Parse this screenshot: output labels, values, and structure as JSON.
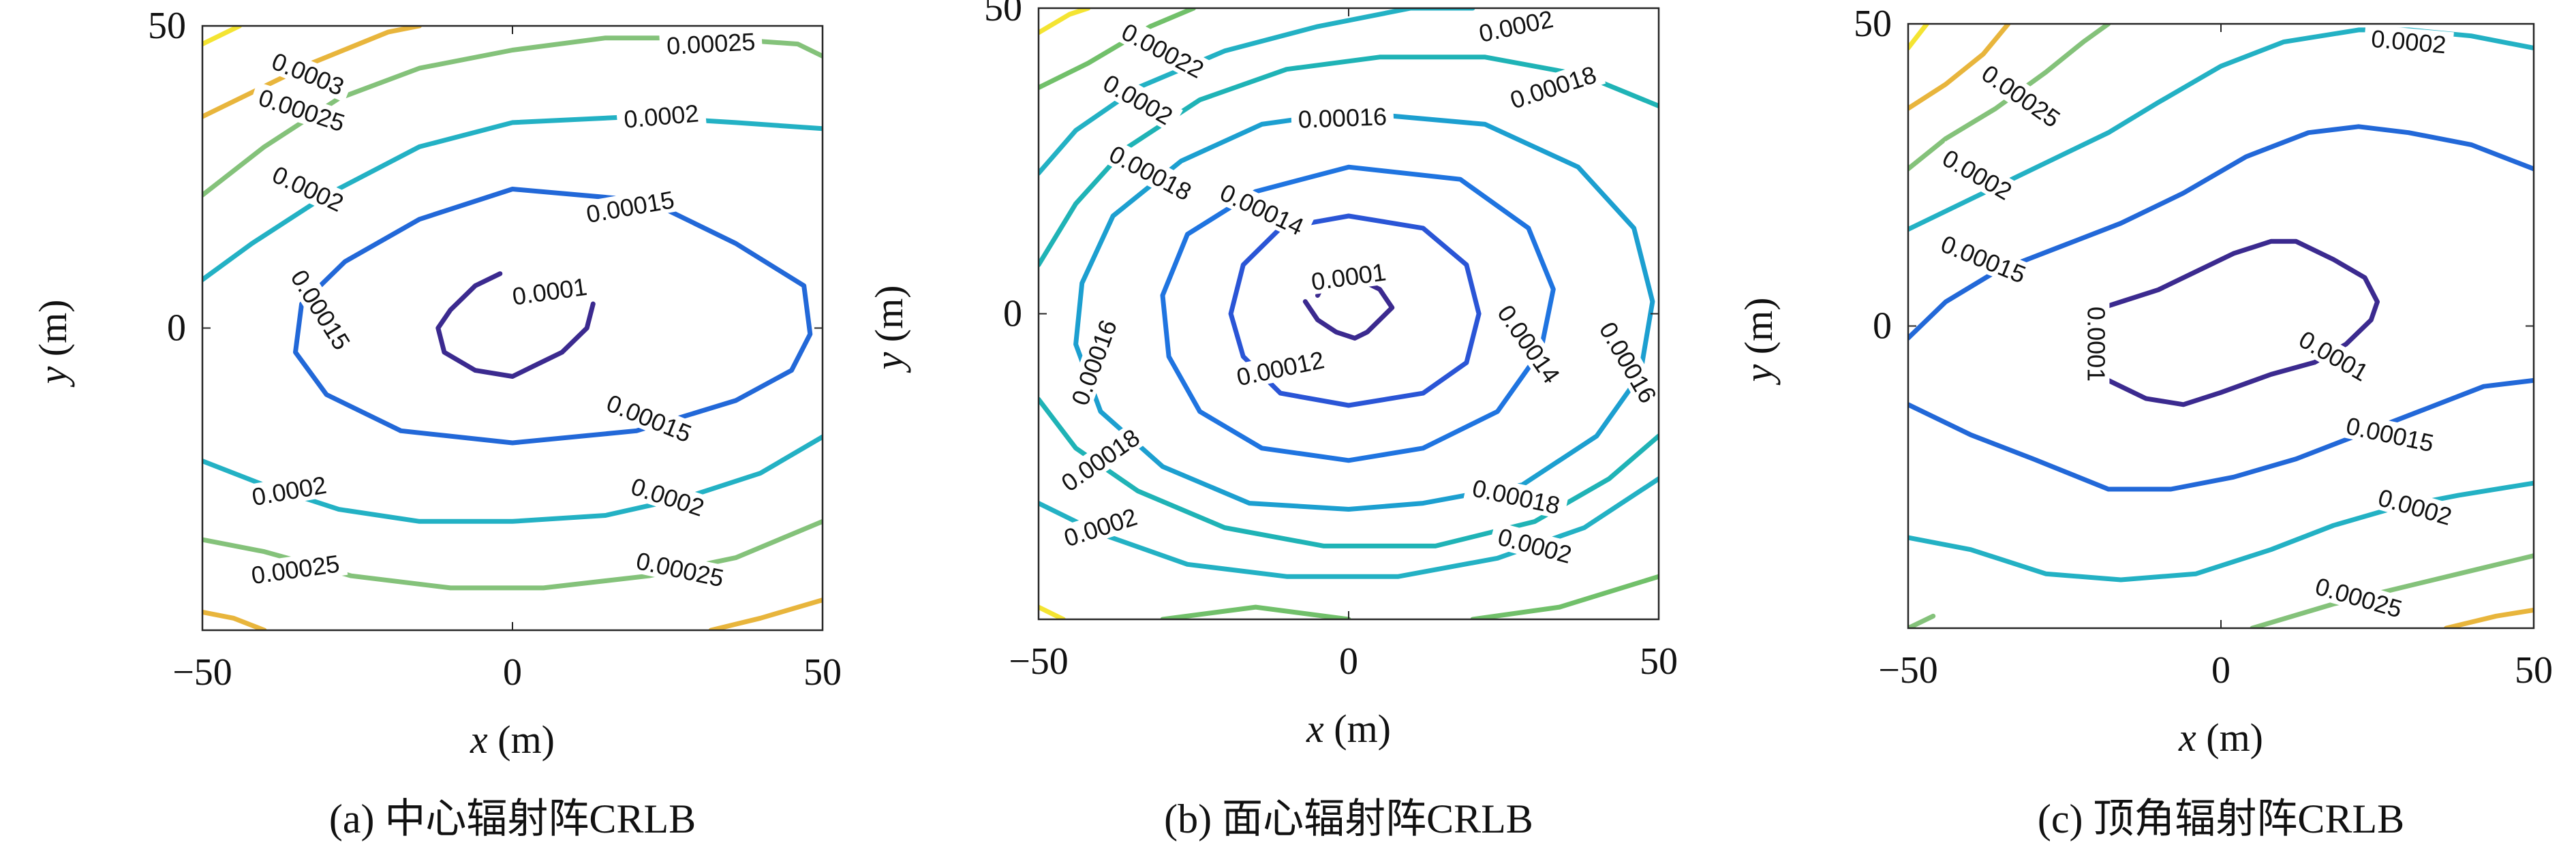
{
  "panels": [
    {
      "caption": "(a) 中心辐射阵CRLB",
      "x_ticks": [
        "−50",
        "0",
        "50"
      ],
      "y_ticks": [
        "50",
        "0"
      ],
      "x_label": "x",
      "x_unit": "(m)",
      "y_label": "y",
      "y_unit": "(m)"
    },
    {
      "caption": "(b) 面心辐射阵CRLB",
      "x_ticks": [
        "−50",
        "0",
        "50"
      ],
      "y_ticks": [
        "50",
        "0"
      ],
      "x_label": "x",
      "x_unit": "(m)",
      "y_label": "y",
      "y_unit": "(m)"
    },
    {
      "caption": "(c) 顶角辐射阵CRLB",
      "x_ticks": [
        "−50",
        "0",
        "50"
      ],
      "y_ticks": [
        "50",
        "0"
      ],
      "x_label": "x",
      "x_unit": "(m)",
      "y_label": "y",
      "y_unit": "(m)"
    }
  ],
  "colors": {
    "0.0001": "#3b2a8f",
    "0.00012": "#2a55d6",
    "0.00014": "#1f74e0",
    "0.00015": "#2268d8",
    "0.00016": "#1c9fd0",
    "0.00018": "#1fb3b6",
    "0.0002": "#23b1c4",
    "0.00022": "#71c06a",
    "0.00025": "#84c27a",
    "0.0003": "#e8b53c",
    "high": "#f4e432"
  },
  "chart_data": [
    {
      "type": "contour",
      "title": "(a) 中心辐射阵CRLB",
      "xlabel": "x (m)",
      "ylabel": "y (m)",
      "xlim": [
        -50,
        50
      ],
      "ylim": [
        -50,
        50
      ],
      "levels": [
        "0.0001",
        "0.00015",
        "0.0002",
        "0.00025",
        "0.0003"
      ],
      "labels": [
        {
          "text": "0.0001",
          "x": 6,
          "y": 6,
          "angle": 8
        },
        {
          "text": "0.00015",
          "x": 19,
          "y": 20,
          "angle": 10
        },
        {
          "text": "0.00015",
          "x": -31,
          "y": 3,
          "angle": -58
        },
        {
          "text": "0.00015",
          "x": 22,
          "y": -15,
          "angle": -22
        },
        {
          "text": "0.0002",
          "x": 24,
          "y": 35,
          "angle": 5
        },
        {
          "text": "0.0002",
          "x": -33,
          "y": 23,
          "angle": -25
        },
        {
          "text": "0.0002",
          "x": -36,
          "y": -27,
          "angle": 10
        },
        {
          "text": "0.0002",
          "x": 25,
          "y": -28,
          "angle": -18
        },
        {
          "text": "0.00025",
          "x": 32,
          "y": 47,
          "angle": 3
        },
        {
          "text": "0.00025",
          "x": -34,
          "y": 36,
          "angle": -18
        },
        {
          "text": "0.00025",
          "x": -35,
          "y": -40,
          "angle": 8
        },
        {
          "text": "0.00025",
          "x": 27,
          "y": -40,
          "angle": -12
        },
        {
          "text": "0.0003",
          "x": -33,
          "y": 42,
          "angle": -22
        }
      ]
    },
    {
      "type": "contour",
      "title": "(b) 面心辐射阵CRLB",
      "xlabel": "x (m)",
      "ylabel": "y (m)",
      "xlim": [
        -50,
        50
      ],
      "ylim": [
        -50,
        50
      ],
      "levels": [
        "0.0001",
        "0.00012",
        "0.00014",
        "0.00016",
        "0.00018",
        "0.0002",
        "0.00022"
      ],
      "labels": [
        {
          "text": "0.0001",
          "x": 0,
          "y": 6,
          "angle": 8
        },
        {
          "text": "0.00012",
          "x": -11,
          "y": -9,
          "angle": 12
        },
        {
          "text": "0.00014",
          "x": -14,
          "y": 17,
          "angle": -25
        },
        {
          "text": "0.00014",
          "x": 29,
          "y": -5,
          "angle": -55
        },
        {
          "text": "0.00016",
          "x": -1,
          "y": 32,
          "angle": 2
        },
        {
          "text": "0.00016",
          "x": -41,
          "y": -8,
          "angle": 70
        },
        {
          "text": "0.00016",
          "x": 45,
          "y": -8,
          "angle": -60
        },
        {
          "text": "0.00018",
          "x": 33,
          "y": 37,
          "angle": 18
        },
        {
          "text": "0.00018",
          "x": -32,
          "y": 23,
          "angle": -28
        },
        {
          "text": "0.00018",
          "x": -40,
          "y": -24,
          "angle": 35
        },
        {
          "text": "0.00018",
          "x": 27,
          "y": -30,
          "angle": -12
        },
        {
          "text": "0.0002",
          "x": 27,
          "y": 47,
          "angle": 12
        },
        {
          "text": "0.0002",
          "x": -34,
          "y": 35,
          "angle": -30
        },
        {
          "text": "0.0002",
          "x": -40,
          "y": -35,
          "angle": 18
        },
        {
          "text": "0.0002",
          "x": 30,
          "y": -38,
          "angle": -15
        },
        {
          "text": "0.00022",
          "x": -30,
          "y": 43,
          "angle": -28
        }
      ]
    },
    {
      "type": "contour",
      "title": "(c) 顶角辐射阵CRLB",
      "xlabel": "x (m)",
      "ylabel": "y (m)",
      "xlim": [
        -50,
        50
      ],
      "ylim": [
        -50,
        50
      ],
      "levels": [
        "0.0001",
        "0.00015",
        "0.0002",
        "0.00025"
      ],
      "labels": [
        {
          "text": "0.0001",
          "x": -20,
          "y": -3,
          "angle": -90
        },
        {
          "text": "0.0001",
          "x": 18,
          "y": -5,
          "angle": -30
        },
        {
          "text": "0.00015",
          "x": -38,
          "y": 11,
          "angle": -22
        },
        {
          "text": "0.00015",
          "x": 27,
          "y": -18,
          "angle": -12
        },
        {
          "text": "0.0002",
          "x": -39,
          "y": 25,
          "angle": -30
        },
        {
          "text": "0.0002",
          "x": 31,
          "y": -30,
          "angle": -16
        },
        {
          "text": "0.0002",
          "x": 30,
          "y": 47,
          "angle": -5
        },
        {
          "text": "0.00025",
          "x": -32,
          "y": 38,
          "angle": -35
        },
        {
          "text": "0.00025",
          "x": 22,
          "y": -45,
          "angle": -16
        }
      ]
    }
  ]
}
